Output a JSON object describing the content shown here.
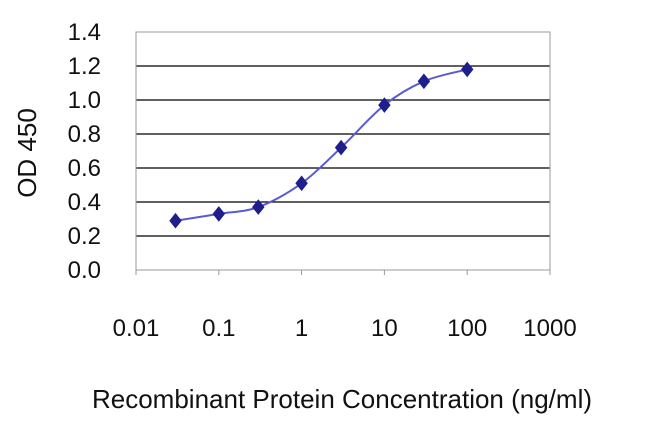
{
  "chart_data": {
    "type": "line",
    "title": "",
    "xlabel": "Recombinant Protein Concentration (ng/ml)",
    "ylabel": "OD 450",
    "x_scale": "log",
    "xlim": [
      0.01,
      1000
    ],
    "ylim": [
      0.0,
      1.4
    ],
    "x_ticks": [
      "0.01",
      "0.1",
      "1",
      "10",
      "100",
      "1000"
    ],
    "y_ticks": [
      "0.0",
      "0.2",
      "0.4",
      "0.6",
      "0.8",
      "1.0",
      "1.2",
      "1.4"
    ],
    "grid": "horizontal",
    "legend": "none",
    "series": [
      {
        "x": [
          0.03,
          0.1,
          0.3,
          1,
          3,
          10,
          30,
          100
        ],
        "y": [
          0.29,
          0.33,
          0.37,
          0.51,
          0.72,
          0.97,
          1.11,
          1.18
        ]
      }
    ],
    "colors": {
      "series": "#1e1e8c",
      "line": "#5a5ad2",
      "grid": "#000000",
      "axis": "#999999"
    }
  }
}
